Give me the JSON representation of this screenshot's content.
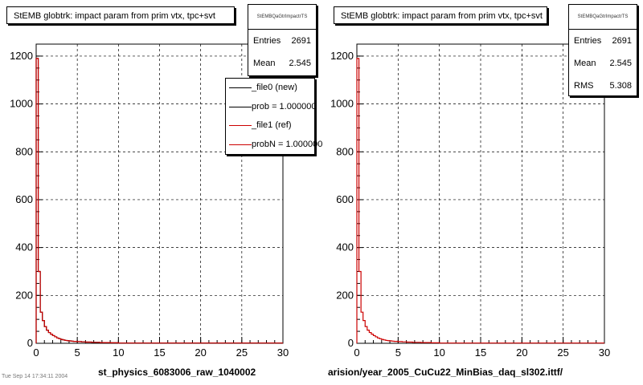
{
  "chart_data": [
    {
      "type": "line",
      "title": "StEMB globtrk: impact param from prim vtx, tpc+svt",
      "xlabel": "",
      "ylabel": "",
      "xlim": [
        0,
        30
      ],
      "ylim": [
        0,
        1250
      ],
      "xticks": [
        0,
        5,
        10,
        15,
        20,
        25,
        30
      ],
      "yticks": [
        0,
        200,
        400,
        600,
        800,
        1000,
        1200
      ],
      "grid": true,
      "stats": {
        "header": "StEMBQaGtrImpactrTS",
        "rows": [
          {
            "label": "Entries",
            "value": "2691"
          },
          {
            "label": "Mean",
            "value": "2.545"
          }
        ]
      },
      "legend": {
        "placement": "top-right",
        "entries": [
          {
            "label": "_file0 (new)",
            "color": "#000000"
          },
          {
            "label": "prob = 1.000000",
            "color": "#000000"
          },
          {
            "label": "_file1 (ref)",
            "color": "#cc0000"
          },
          {
            "label": "probN = 1.000000",
            "color": "#cc0000"
          }
        ]
      },
      "bin_width": 0.25,
      "series": [
        {
          "name": "_file0 (new)",
          "color": "#000000",
          "values": [
            1190,
            300,
            130,
            95,
            70,
            55,
            45,
            38,
            32,
            27,
            22,
            19,
            16,
            14,
            12,
            11,
            10,
            9,
            8,
            8,
            7,
            7,
            6,
            6,
            5,
            5,
            5,
            4,
            4,
            4,
            4,
            3,
            3,
            3,
            3,
            3,
            2,
            2,
            2,
            2
          ]
        },
        {
          "name": "_file1 (ref)",
          "color": "#cc0000",
          "values": [
            1190,
            300,
            130,
            95,
            70,
            55,
            45,
            38,
            32,
            27,
            22,
            19,
            16,
            14,
            12,
            11,
            10,
            9,
            8,
            8,
            7,
            7,
            6,
            6,
            5,
            5,
            5,
            4,
            4,
            4,
            4,
            3,
            3,
            3,
            3,
            3,
            2,
            2,
            2,
            2
          ]
        }
      ],
      "file_label": "st_physics_6083006_raw_1040002"
    },
    {
      "type": "line",
      "title": "StEMB globtrk: impact param from prim vtx, tpc+svt",
      "xlabel": "",
      "ylabel": "",
      "xlim": [
        0,
        30
      ],
      "ylim": [
        0,
        1250
      ],
      "xticks": [
        0,
        5,
        10,
        15,
        20,
        25,
        30
      ],
      "yticks": [
        0,
        200,
        400,
        600,
        800,
        1000,
        1200
      ],
      "grid": true,
      "stats": {
        "header": "StEMBQaGtrImpactrTS",
        "rows": [
          {
            "label": "Entries",
            "value": "2691"
          },
          {
            "label": "Mean",
            "value": "2.545"
          },
          {
            "label": "RMS",
            "value": "5.308"
          }
        ]
      },
      "bin_width": 0.25,
      "series": [
        {
          "name": "_file1 (ref)",
          "color": "#cc0000",
          "values": [
            1190,
            300,
            130,
            95,
            70,
            55,
            45,
            38,
            32,
            27,
            22,
            19,
            16,
            14,
            12,
            11,
            10,
            9,
            8,
            8,
            7,
            7,
            6,
            6,
            5,
            5,
            5,
            4,
            4,
            4,
            4,
            3,
            3,
            3,
            3,
            3,
            2,
            2,
            2,
            2
          ]
        }
      ],
      "file_label": "arision/year_2005_CuCu22_MinBias_daq_sl302.ittf/"
    }
  ],
  "footer": "Tue Sep 14 17:34:11 2004"
}
